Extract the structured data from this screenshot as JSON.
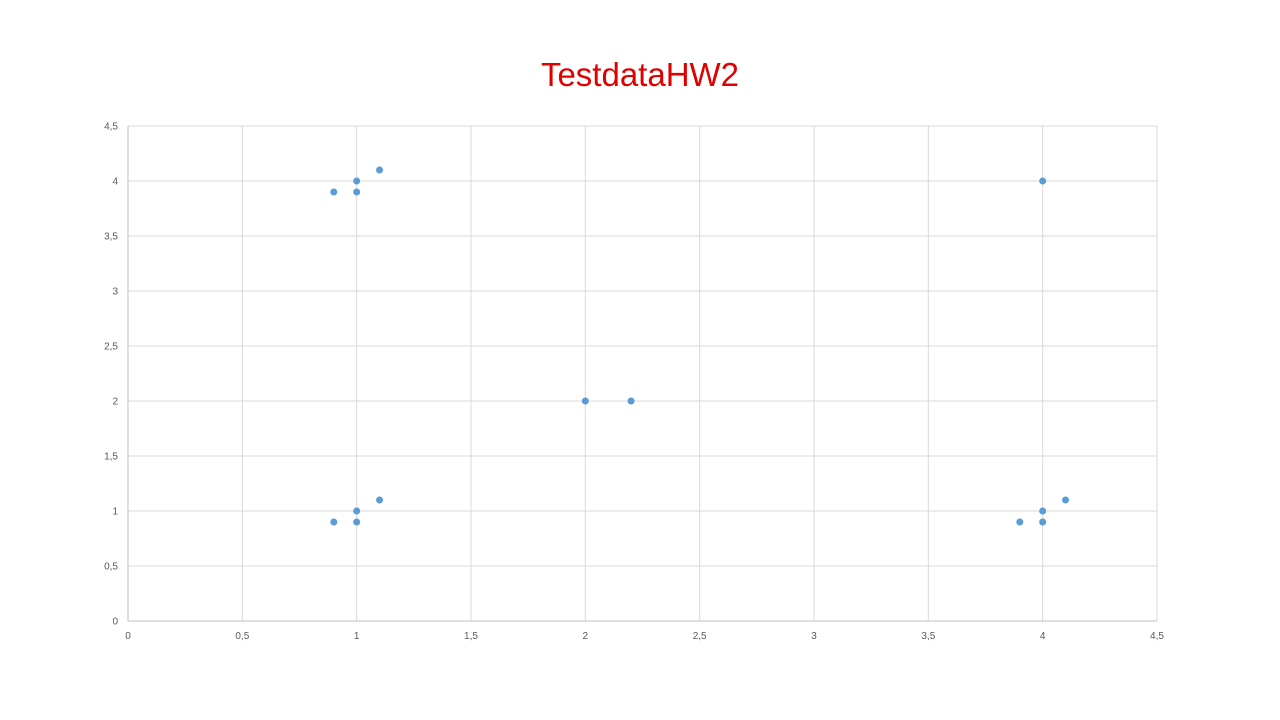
{
  "chart_data": {
    "type": "scatter",
    "title": "TestdataHW2",
    "xlabel": "",
    "ylabel": "",
    "xlim": [
      0,
      4.5
    ],
    "ylim": [
      0,
      4.5
    ],
    "x_ticks": [
      "0",
      "0,5",
      "1",
      "1,5",
      "2",
      "2,5",
      "3",
      "3,5",
      "4",
      "4,5"
    ],
    "y_ticks": [
      "0",
      "0,5",
      "1",
      "1,5",
      "2",
      "2,5",
      "3",
      "3,5",
      "4",
      "4,5"
    ],
    "grid": true,
    "legend": "none",
    "series": [
      {
        "color": "#5b9bd5",
        "points": [
          {
            "x": 0.9,
            "y": 3.9
          },
          {
            "x": 1.0,
            "y": 4.0
          },
          {
            "x": 1.0,
            "y": 3.9
          },
          {
            "x": 1.1,
            "y": 4.1
          },
          {
            "x": 4.0,
            "y": 4.0
          },
          {
            "x": 2.0,
            "y": 2.0
          },
          {
            "x": 2.2,
            "y": 2.0
          },
          {
            "x": 0.9,
            "y": 0.9
          },
          {
            "x": 1.0,
            "y": 1.0
          },
          {
            "x": 1.0,
            "y": 0.9
          },
          {
            "x": 1.1,
            "y": 1.1
          },
          {
            "x": 3.9,
            "y": 0.9
          },
          {
            "x": 4.0,
            "y": 1.0
          },
          {
            "x": 4.0,
            "y": 0.9
          },
          {
            "x": 4.1,
            "y": 1.1
          }
        ]
      }
    ]
  }
}
